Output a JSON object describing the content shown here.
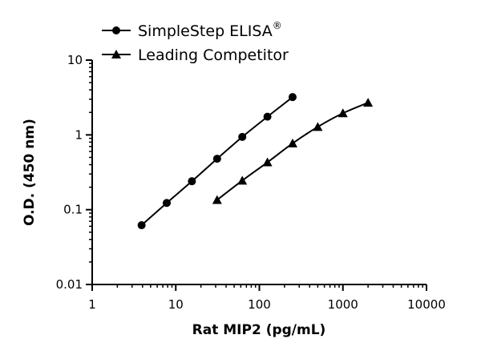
{
  "chart_data": {
    "type": "line",
    "xlabel": "Rat MIP2 (pg/mL)",
    "ylabel": "O.D. (450 nm)",
    "x_scale": "log",
    "y_scale": "log",
    "xlim": [
      1,
      10000
    ],
    "ylim": [
      0.01,
      10
    ],
    "x_ticks": [
      "1",
      "10",
      "100",
      "1000",
      "10000"
    ],
    "y_ticks": [
      "0.01",
      "0.1",
      "1",
      "10"
    ],
    "grid": false,
    "legend_position": "top-left",
    "series": [
      {
        "name": "SimpleStep ELISA",
        "name_superscript": "®",
        "marker": "circle",
        "color": "#000000",
        "x": [
          3.9,
          7.8,
          15.6,
          31.25,
          62.5,
          125,
          250
        ],
        "y": [
          0.062,
          0.123,
          0.24,
          0.48,
          0.94,
          1.75,
          3.2
        ]
      },
      {
        "name": "Leading Competitor",
        "marker": "triangle",
        "color": "#000000",
        "x": [
          31.25,
          62.5,
          125,
          250,
          500,
          1000,
          2000
        ],
        "y": [
          0.135,
          0.245,
          0.43,
          0.77,
          1.28,
          1.95,
          2.7
        ]
      }
    ]
  }
}
